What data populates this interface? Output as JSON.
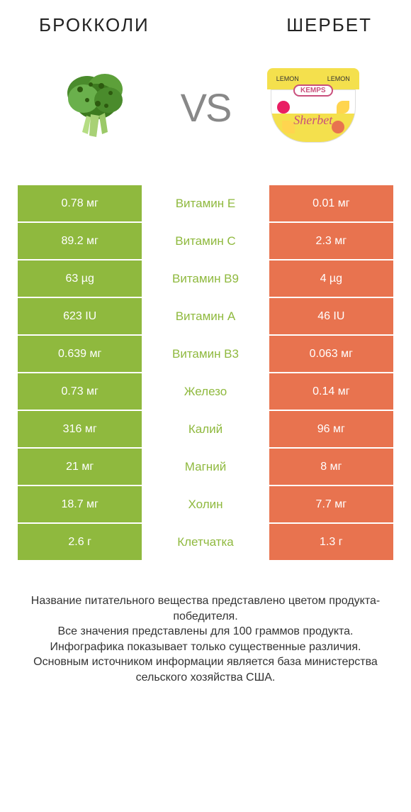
{
  "header": {
    "left_title": "БРОККОЛИ",
    "right_title": "ШЕРБЕТ"
  },
  "vs_label": "VS",
  "colors": {
    "left_cell": "#8fb93e",
    "right_cell": "#e8734f",
    "middle_text_left": "#8fb93e",
    "background": "#ffffff"
  },
  "rows": [
    {
      "left": "0.78 мг",
      "label": "Витамин E",
      "right": "0.01 мг",
      "label_color": "#8fb93e"
    },
    {
      "left": "89.2 мг",
      "label": "Витамин C",
      "right": "2.3 мг",
      "label_color": "#8fb93e"
    },
    {
      "left": "63 µg",
      "label": "Витамин B9",
      "right": "4 µg",
      "label_color": "#8fb93e"
    },
    {
      "left": "623 IU",
      "label": "Витамин A",
      "right": "46 IU",
      "label_color": "#8fb93e"
    },
    {
      "left": "0.639 мг",
      "label": "Витамин B3",
      "right": "0.063 мг",
      "label_color": "#8fb93e"
    },
    {
      "left": "0.73 мг",
      "label": "Железо",
      "right": "0.14 мг",
      "label_color": "#8fb93e"
    },
    {
      "left": "316 мг",
      "label": "Калий",
      "right": "96 мг",
      "label_color": "#8fb93e"
    },
    {
      "left": "21 мг",
      "label": "Магний",
      "right": "8 мг",
      "label_color": "#8fb93e"
    },
    {
      "left": "18.7 мг",
      "label": "Холин",
      "right": "7.7 мг",
      "label_color": "#8fb93e"
    },
    {
      "left": "2.6 г",
      "label": "Клетчатка",
      "right": "1.3 г",
      "label_color": "#8fb93e"
    }
  ],
  "sherbet": {
    "lid_text": "LEMON",
    "brand": "KEMPS",
    "label": "Sherbet"
  },
  "footer": "Название питательного вещества представлено цветом продукта-победителя.\nВсе значения представлены для 100 граммов продукта.\nИнфографика показывает только существенные различия.\nОсновным источником информации является база министерства сельского хозяйства США."
}
